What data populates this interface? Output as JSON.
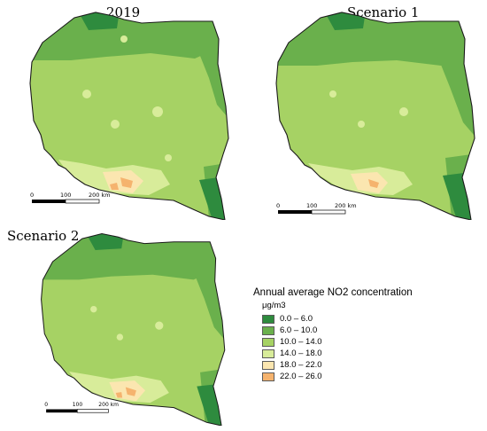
{
  "maps": [
    {
      "title": "2019"
    },
    {
      "title": "Scenario 1"
    },
    {
      "title": "Scenario 2"
    }
  ],
  "scale_bar": {
    "labels": [
      "0",
      "100",
      "200 km"
    ]
  },
  "legend": {
    "title": "Annual average NO2 concentration",
    "unit": "μg/m3",
    "classes": [
      {
        "label": "0.0 – 6.0",
        "color": "#2e8b3e"
      },
      {
        "label": "6.0 – 10.0",
        "color": "#6ab04c"
      },
      {
        "label": "10.0 – 14.0",
        "color": "#a6d264"
      },
      {
        "label": "14.0 – 18.0",
        "color": "#d8ec9a"
      },
      {
        "label": "18.0 – 22.0",
        "color": "#fbe6b0"
      },
      {
        "label": "22.0 – 26.0",
        "color": "#f5b36e"
      }
    ]
  }
}
